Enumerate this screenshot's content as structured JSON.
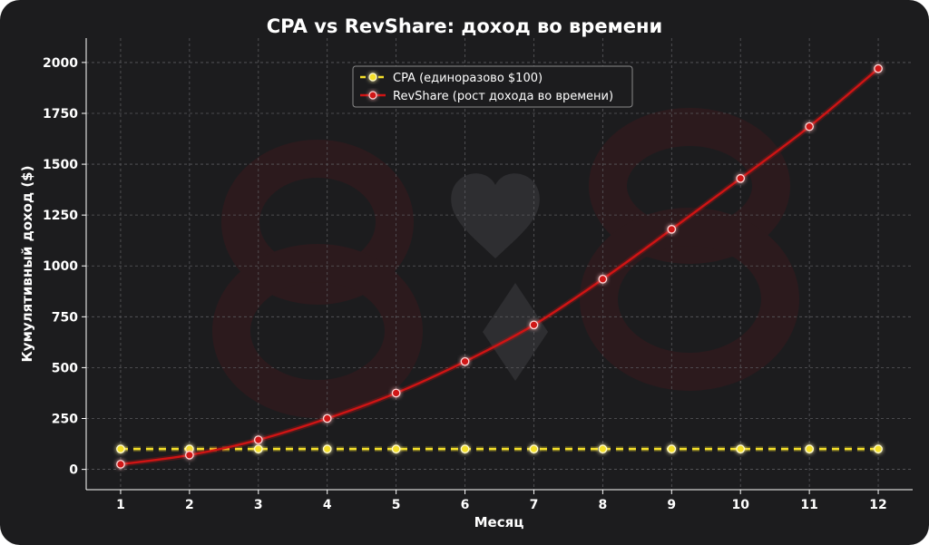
{
  "chart_data": {
    "type": "line",
    "title": "CPA vs RevShare: доход во времени",
    "xlabel": "Месяц",
    "ylabel": "Кумулятивный доход  ($)",
    "x": [
      1,
      2,
      3,
      4,
      5,
      6,
      7,
      8,
      9,
      10,
      11,
      12
    ],
    "xlim": [
      0.5,
      12.5
    ],
    "ylim": [
      -100,
      2120
    ],
    "yticks": [
      0,
      250,
      500,
      750,
      1000,
      1250,
      1500,
      1750,
      2000
    ],
    "grid": true,
    "legend_position": "top-center",
    "series": [
      {
        "name": "CPA (единоразово $100)",
        "color": "#f5e02a",
        "style": "dashed",
        "values": [
          100,
          100,
          100,
          100,
          100,
          100,
          100,
          100,
          100,
          100,
          100,
          100
        ]
      },
      {
        "name": "RevShare (рост дохода во времени)",
        "color": "#d01414",
        "style": "solid",
        "values": [
          25,
          70,
          145,
          250,
          375,
          530,
          710,
          935,
          1180,
          1430,
          1685,
          1970
        ]
      }
    ]
  }
}
